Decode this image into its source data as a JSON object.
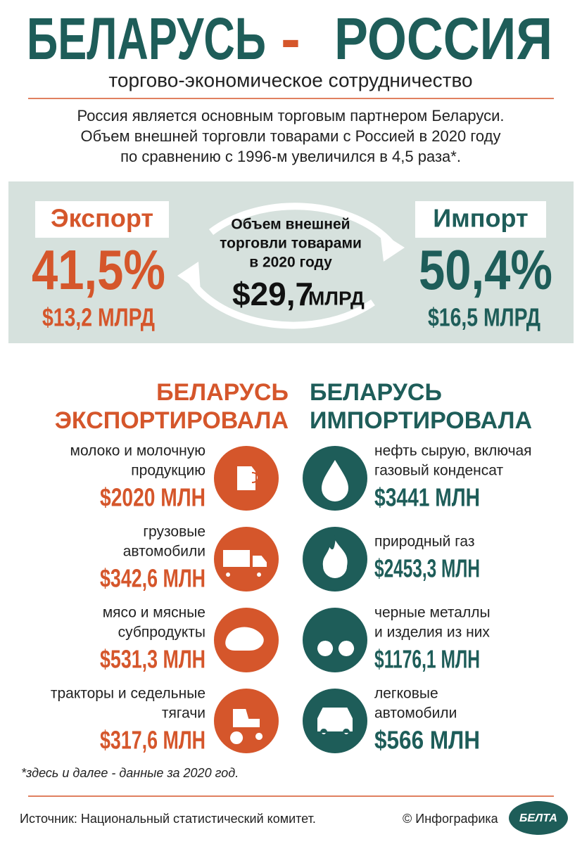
{
  "header": {
    "title_left": "БЕЛАРУСЬ",
    "title_dash": "-",
    "title_right": "РОССИЯ",
    "subtitle": "торгово-экономическое сотрудничество",
    "intro": [
      "Россия является основным торговым партнером Беларуси.",
      "Объем внешней торговли товарами с Россией в 2020 году",
      "по сравнению с 1996-м увеличился в 4,5 раза*."
    ]
  },
  "summary": {
    "export": {
      "label": "Экспорт",
      "share": "41,5%",
      "amount": "$13,2 МЛРД"
    },
    "total": {
      "lines": [
        "Объем внешней",
        "торговли товарами",
        "в 2020 году"
      ],
      "amount": "$29,7",
      "unit": "МЛРД"
    },
    "import": {
      "label": "Импорт",
      "share": "50,4%",
      "amount": "$16,5 МЛРД"
    }
  },
  "exports": {
    "heading": [
      "БЕЛАРУСЬ",
      "ЭКСПОРТИРОВАЛА"
    ],
    "items": [
      {
        "label": [
          "молоко и молочную",
          "продукцию"
        ],
        "value": "$2020 МЛН"
      },
      {
        "label": [
          "грузовые",
          "автомобили"
        ],
        "value": "$342,6 МЛН"
      },
      {
        "label": [
          "мясо и мясные",
          "субпродукты"
        ],
        "value": "$531,3 МЛН"
      },
      {
        "label": [
          "тракторы и седельные",
          "тягачи"
        ],
        "value": "$317,6 МЛН"
      }
    ]
  },
  "imports": {
    "heading": [
      "БЕЛАРУСЬ",
      "ИМПОРТИРОВАЛА"
    ],
    "items": [
      {
        "label": [
          "нефть сырую, включая",
          "газовый конденсат"
        ],
        "value": "$3441 МЛН"
      },
      {
        "label": [
          "природный газ"
        ],
        "value": "$2453,3 МЛН"
      },
      {
        "label": [
          "черные металлы",
          "и изделия из них"
        ],
        "value": "$1176,1 МЛН"
      },
      {
        "label": [
          "легковые",
          "автомобили"
        ],
        "value": "$566 МЛН"
      }
    ]
  },
  "footer": {
    "note": "*здесь и далее - данные за 2020 год.",
    "source": "Источник: Национальный статистический комитет.",
    "credit": "© Инфографика",
    "logo": "БЕЛТА"
  }
}
